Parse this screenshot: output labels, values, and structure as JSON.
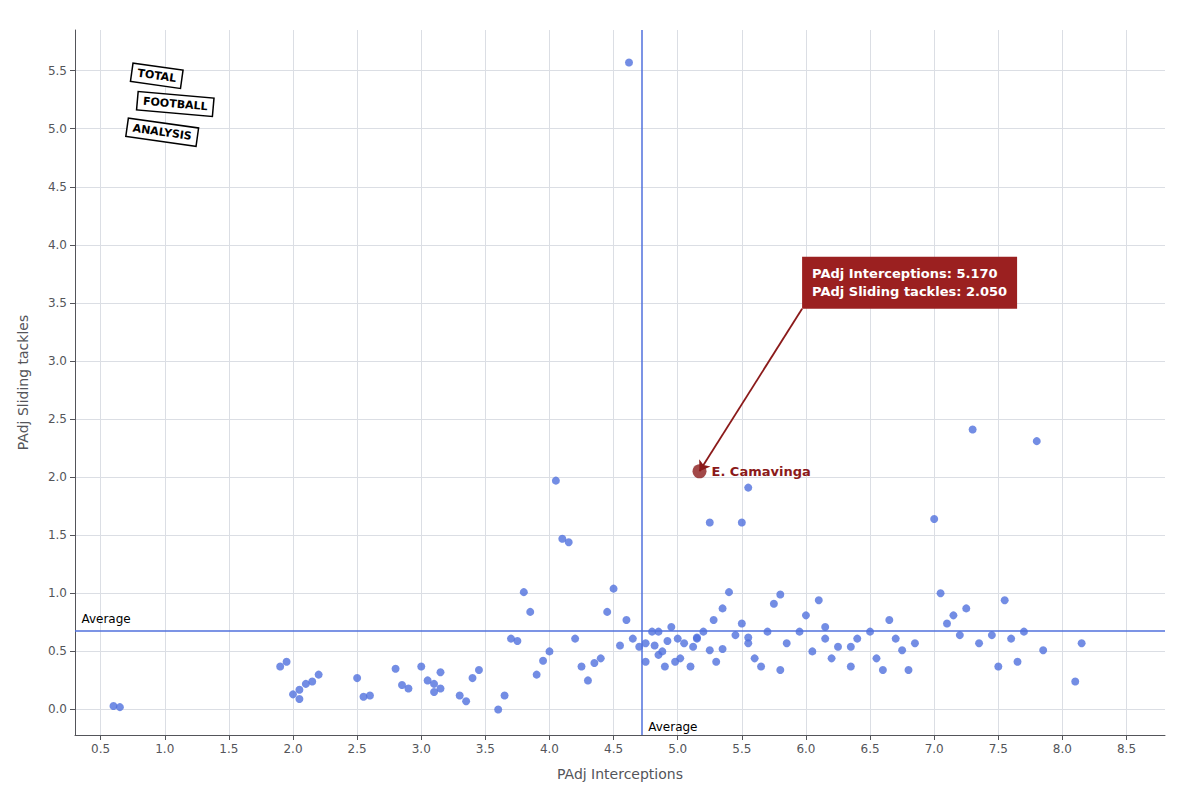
{
  "chart_data": {
    "type": "scatter",
    "xlabel": "PAdj Interceptions",
    "ylabel": "PAdj Sliding tackles",
    "xlim": [
      0.3,
      8.8
    ],
    "ylim": [
      -0.22,
      5.85
    ],
    "xticks": [
      0.5,
      {
        "value": 1.0,
        "label": "1.0"
      },
      1.5,
      {
        "value": 2.0,
        "label": "2.0"
      },
      2.5,
      {
        "value": 3.0,
        "label": "3.0"
      },
      3.5,
      {
        "value": 4.0,
        "label": "4.0"
      },
      4.5,
      {
        "value": 5.0,
        "label": "5.0"
      },
      5.5,
      {
        "value": 6.0,
        "label": "6.0"
      },
      6.5,
      {
        "value": 7.0,
        "label": "7.0"
      },
      7.5,
      {
        "value": 8.0,
        "label": "8.0"
      },
      8.5
    ],
    "yticks": [
      {
        "value": 0.0,
        "label": "0.0"
      },
      0.5,
      {
        "value": 1.0,
        "label": "1.0"
      },
      1.5,
      {
        "value": 2.0,
        "label": "2.0"
      },
      2.5,
      {
        "value": 3.0,
        "label": "3.0"
      },
      3.5,
      {
        "value": 4.0,
        "label": "4.0"
      },
      4.5,
      {
        "value": 5.0,
        "label": "5.0"
      },
      5.5
    ],
    "grid": true,
    "series": [
      {
        "x": [
          0.6,
          0.65,
          1.9,
          1.95,
          2.05,
          2.1,
          2.15,
          2.2,
          2.0,
          2.05,
          2.5,
          2.55,
          2.6,
          2.8,
          2.85,
          2.9,
          3.0,
          3.05,
          3.1,
          3.15,
          3.1,
          3.15,
          3.3,
          3.35,
          3.4,
          3.45,
          3.6,
          3.65,
          3.7,
          3.75,
          3.8,
          3.85,
          3.9,
          3.95,
          4.0,
          4.05,
          4.1,
          4.15,
          4.2,
          4.25,
          4.3,
          4.35,
          4.4,
          4.45,
          4.5,
          4.55,
          4.6,
          4.65,
          4.7,
          4.75,
          4.8,
          4.82,
          4.85,
          4.88,
          4.9,
          4.92,
          4.95,
          4.98,
          5.0,
          5.02,
          5.05,
          4.62,
          5.1,
          5.12,
          5.15,
          5.2,
          5.25,
          5.28,
          5.3,
          5.35,
          5.4,
          5.45,
          5.5,
          5.55,
          5.6,
          5.65,
          5.7,
          5.75,
          5.8,
          5.85,
          6.0,
          6.05,
          6.1,
          6.15,
          6.2,
          6.25,
          6.35,
          6.4,
          6.5,
          6.55,
          6.6,
          6.65,
          6.7,
          6.75,
          6.8,
          7.0,
          7.05,
          7.1,
          7.15,
          7.2,
          7.25,
          7.3,
          7.35,
          7.5,
          7.55,
          7.6,
          7.65,
          7.7,
          7.8,
          7.85,
          8.1,
          8.15,
          5.5,
          5.55,
          5.8,
          5.25,
          6.15,
          5.15,
          4.85,
          5.55,
          4.75,
          5.35,
          5.95,
          6.35,
          6.85,
          7.45
        ],
        "values": [
          0.03,
          0.02,
          0.37,
          0.41,
          0.17,
          0.22,
          0.24,
          0.3,
          0.13,
          0.09,
          0.27,
          0.11,
          0.12,
          0.35,
          0.21,
          0.18,
          0.37,
          0.25,
          0.15,
          0.32,
          0.22,
          0.18,
          0.12,
          0.07,
          0.27,
          0.34,
          0.0,
          0.12,
          0.61,
          0.59,
          1.01,
          0.84,
          0.3,
          0.42,
          0.5,
          1.97,
          1.47,
          1.44,
          0.61,
          0.37,
          0.25,
          0.4,
          0.44,
          0.84,
          1.04,
          0.55,
          0.77,
          0.61,
          0.54,
          0.41,
          0.67,
          0.55,
          0.47,
          0.5,
          0.37,
          0.59,
          0.71,
          0.41,
          0.61,
          0.44,
          0.57,
          5.57,
          0.37,
          0.54,
          0.61,
          0.67,
          0.51,
          0.77,
          0.41,
          0.87,
          1.01,
          0.64,
          0.74,
          0.57,
          0.44,
          0.37,
          0.67,
          0.91,
          0.34,
          0.57,
          0.81,
          0.5,
          0.94,
          0.61,
          0.44,
          0.54,
          0.37,
          0.61,
          0.67,
          0.44,
          0.34,
          0.77,
          0.61,
          0.51,
          0.34,
          1.64,
          1.0,
          0.74,
          0.81,
          0.64,
          0.87,
          2.41,
          0.57,
          0.37,
          0.94,
          0.61,
          0.41,
          0.67,
          2.31,
          0.51,
          0.24,
          0.57,
          1.61,
          1.91,
          0.99,
          1.61,
          0.71,
          0.62,
          0.67,
          0.62,
          0.57,
          0.52,
          0.67,
          0.54,
          0.57,
          0.64
        ]
      },
      {
        "x": [
          5.17
        ],
        "values": [
          2.05
        ],
        "color": "#8b1a1a",
        "labels": [
          "E. Camavinga"
        ]
      }
    ],
    "average_lines": [
      {
        "axis": "x",
        "value": 4.72,
        "label": "Average"
      },
      {
        "axis": "y",
        "value": 0.68,
        "label": "Average"
      }
    ],
    "annotations": [
      {
        "text": "PAdj Interceptions: 5.170\nPAdj Sliding tackles: 2.050",
        "x": 5.17,
        "y": 2.05,
        "box_color": "#9b2020",
        "text_color": "#ffffff"
      }
    ],
    "logo": {
      "texts": [
        "TOTAL",
        "FOOTBALL",
        "ANALYSIS"
      ],
      "color": "#000000",
      "background_color": "#ffffff"
    }
  }
}
